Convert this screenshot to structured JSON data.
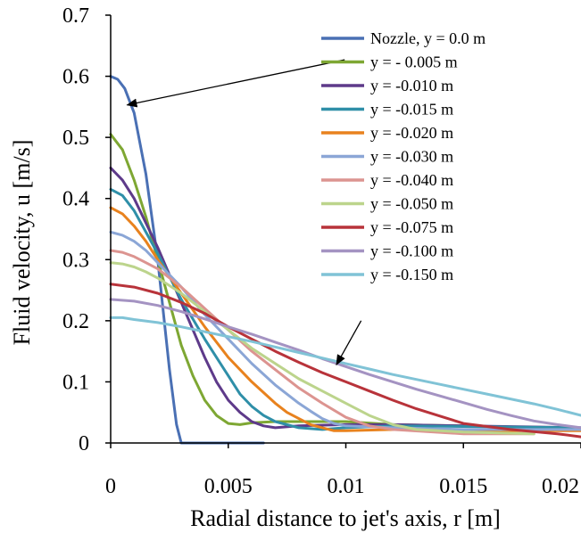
{
  "chart_data": {
    "type": "line",
    "xlabel": "Radial distance to jet's axis, r [m]",
    "ylabel": "Fluid velocity, u [m/s]",
    "xlim": [
      0,
      0.02
    ],
    "ylim": [
      0,
      0.7
    ],
    "xticks": [
      0,
      0.005,
      0.01,
      0.015,
      0.02
    ],
    "xtick_labels": [
      "0",
      "0.005",
      "0.01",
      "0.015",
      "0.02"
    ],
    "yticks": [
      0,
      0.1,
      0.2,
      0.3,
      0.4,
      0.5,
      0.6,
      0.7
    ],
    "ytick_labels": [
      "0",
      "0.1",
      "0.2",
      "0.3",
      "0.4",
      "0.5",
      "0.6",
      "0.7"
    ],
    "grid": false,
    "legend_position": "top-right",
    "series": [
      {
        "name": "Nozzle, y = 0.0 m",
        "color": "#4a70b4",
        "x": [
          0,
          0.0003,
          0.0006,
          0.001,
          0.0015,
          0.002,
          0.0025,
          0.0028,
          0.003,
          0.0045,
          0.0065
        ],
        "y": [
          0.6,
          0.595,
          0.58,
          0.54,
          0.44,
          0.3,
          0.12,
          0.03,
          0.0,
          0.0,
          0.0
        ]
      },
      {
        "name": "y = - 0.005 m",
        "color": "#7ea733",
        "x": [
          0,
          0.0005,
          0.001,
          0.0015,
          0.002,
          0.0025,
          0.003,
          0.0035,
          0.004,
          0.0045,
          0.005,
          0.0055,
          0.006,
          0.007,
          0.008,
          0.01,
          0.012,
          0.015,
          0.018
        ],
        "y": [
          0.505,
          0.48,
          0.43,
          0.37,
          0.3,
          0.23,
          0.16,
          0.11,
          0.07,
          0.045,
          0.032,
          0.03,
          0.033,
          0.035,
          0.035,
          0.035,
          0.03,
          0.028,
          0.025
        ]
      },
      {
        "name": "y = -0.010 m",
        "color": "#5e3a8a",
        "x": [
          0,
          0.0005,
          0.001,
          0.0015,
          0.002,
          0.003,
          0.004,
          0.0045,
          0.005,
          0.0055,
          0.006,
          0.0065,
          0.007,
          0.008,
          0.01,
          0.012,
          0.015,
          0.02
        ],
        "y": [
          0.45,
          0.43,
          0.4,
          0.36,
          0.32,
          0.23,
          0.14,
          0.1,
          0.07,
          0.05,
          0.035,
          0.028,
          0.025,
          0.028,
          0.03,
          0.03,
          0.028,
          0.025
        ]
      },
      {
        "name": "y = -0.015 m",
        "color": "#2f8fa8",
        "x": [
          0,
          0.0005,
          0.001,
          0.0015,
          0.002,
          0.003,
          0.004,
          0.005,
          0.0055,
          0.006,
          0.0065,
          0.007,
          0.008,
          0.009,
          0.01,
          0.012,
          0.015,
          0.02
        ],
        "y": [
          0.415,
          0.405,
          0.38,
          0.345,
          0.31,
          0.235,
          0.17,
          0.11,
          0.08,
          0.06,
          0.045,
          0.035,
          0.025,
          0.022,
          0.025,
          0.028,
          0.027,
          0.025
        ]
      },
      {
        "name": "y = -0.020 m",
        "color": "#e8821e",
        "x": [
          0,
          0.0005,
          0.001,
          0.0015,
          0.002,
          0.003,
          0.004,
          0.005,
          0.006,
          0.007,
          0.0075,
          0.008,
          0.0085,
          0.009,
          0.0095,
          0.01,
          0.012,
          0.015,
          0.02
        ],
        "y": [
          0.385,
          0.375,
          0.355,
          0.33,
          0.3,
          0.245,
          0.19,
          0.14,
          0.1,
          0.065,
          0.05,
          0.04,
          0.03,
          0.025,
          0.02,
          0.02,
          0.022,
          0.02,
          0.02
        ]
      },
      {
        "name": "y = -0.030 m",
        "color": "#8ba6d6",
        "x": [
          0,
          0.0005,
          0.001,
          0.0015,
          0.002,
          0.003,
          0.004,
          0.005,
          0.006,
          0.007,
          0.008,
          0.0085,
          0.009,
          0.0095,
          0.01,
          0.012,
          0.015,
          0.02
        ],
        "y": [
          0.345,
          0.34,
          0.33,
          0.315,
          0.295,
          0.255,
          0.21,
          0.17,
          0.13,
          0.095,
          0.065,
          0.052,
          0.04,
          0.032,
          0.028,
          0.025,
          0.022,
          0.022
        ]
      },
      {
        "name": "y = -0.040 m",
        "color": "#dc9490",
        "x": [
          0,
          0.0005,
          0.001,
          0.0015,
          0.002,
          0.003,
          0.004,
          0.005,
          0.006,
          0.007,
          0.008,
          0.009,
          0.01,
          0.0105,
          0.011,
          0.012,
          0.015,
          0.018
        ],
        "y": [
          0.315,
          0.312,
          0.305,
          0.295,
          0.285,
          0.255,
          0.22,
          0.185,
          0.15,
          0.12,
          0.09,
          0.065,
          0.042,
          0.035,
          0.028,
          0.022,
          0.015,
          0.015
        ]
      },
      {
        "name": "y = -0.050 m",
        "color": "#bcd48c",
        "x": [
          0,
          0.0005,
          0.001,
          0.0015,
          0.002,
          0.003,
          0.004,
          0.005,
          0.006,
          0.007,
          0.008,
          0.009,
          0.01,
          0.011,
          0.012,
          0.013,
          0.015,
          0.018
        ],
        "y": [
          0.295,
          0.293,
          0.288,
          0.28,
          0.27,
          0.245,
          0.215,
          0.185,
          0.155,
          0.13,
          0.105,
          0.085,
          0.065,
          0.045,
          0.03,
          0.022,
          0.018,
          0.015
        ]
      },
      {
        "name": "y = -0.075 m",
        "color": "#b8333a",
        "x": [
          0,
          0.001,
          0.002,
          0.003,
          0.004,
          0.005,
          0.006,
          0.007,
          0.008,
          0.009,
          0.01,
          0.011,
          0.012,
          0.013,
          0.014,
          0.015,
          0.017,
          0.019,
          0.02
        ],
        "y": [
          0.26,
          0.255,
          0.245,
          0.23,
          0.212,
          0.19,
          0.17,
          0.15,
          0.132,
          0.115,
          0.1,
          0.085,
          0.07,
          0.056,
          0.044,
          0.032,
          0.022,
          0.015,
          0.01
        ]
      },
      {
        "name": "y = -0.100 m",
        "color": "#a493c2",
        "x": [
          0,
          0.001,
          0.002,
          0.003,
          0.004,
          0.005,
          0.006,
          0.007,
          0.008,
          0.009,
          0.01,
          0.011,
          0.012,
          0.013,
          0.014,
          0.015,
          0.016,
          0.017,
          0.018,
          0.019,
          0.02
        ],
        "y": [
          0.235,
          0.232,
          0.225,
          0.215,
          0.203,
          0.19,
          0.178,
          0.165,
          0.152,
          0.138,
          0.125,
          0.112,
          0.1,
          0.088,
          0.077,
          0.066,
          0.055,
          0.045,
          0.036,
          0.03,
          0.025
        ]
      },
      {
        "name": "y = -0.150 m",
        "color": "#80c3d6",
        "x": [
          0,
          0.0005,
          0.001,
          0.002,
          0.003,
          0.004,
          0.005,
          0.006,
          0.007,
          0.008,
          0.009,
          0.01,
          0.011,
          0.012,
          0.013,
          0.014,
          0.015,
          0.016,
          0.017,
          0.018,
          0.019,
          0.02
        ],
        "y": [
          0.205,
          0.205,
          0.202,
          0.197,
          0.19,
          0.182,
          0.174,
          0.166,
          0.157,
          0.148,
          0.139,
          0.13,
          0.121,
          0.112,
          0.104,
          0.096,
          0.088,
          0.08,
          0.072,
          0.064,
          0.055,
          0.045
        ]
      }
    ],
    "annotations": [
      {
        "type": "arrow",
        "from": [
          0.00995,
          0.627
        ],
        "to": [
          0.0007,
          0.553
        ]
      },
      {
        "type": "arrow",
        "from": [
          0.01065,
          0.2
        ],
        "to": [
          0.0096,
          0.128
        ]
      }
    ]
  }
}
